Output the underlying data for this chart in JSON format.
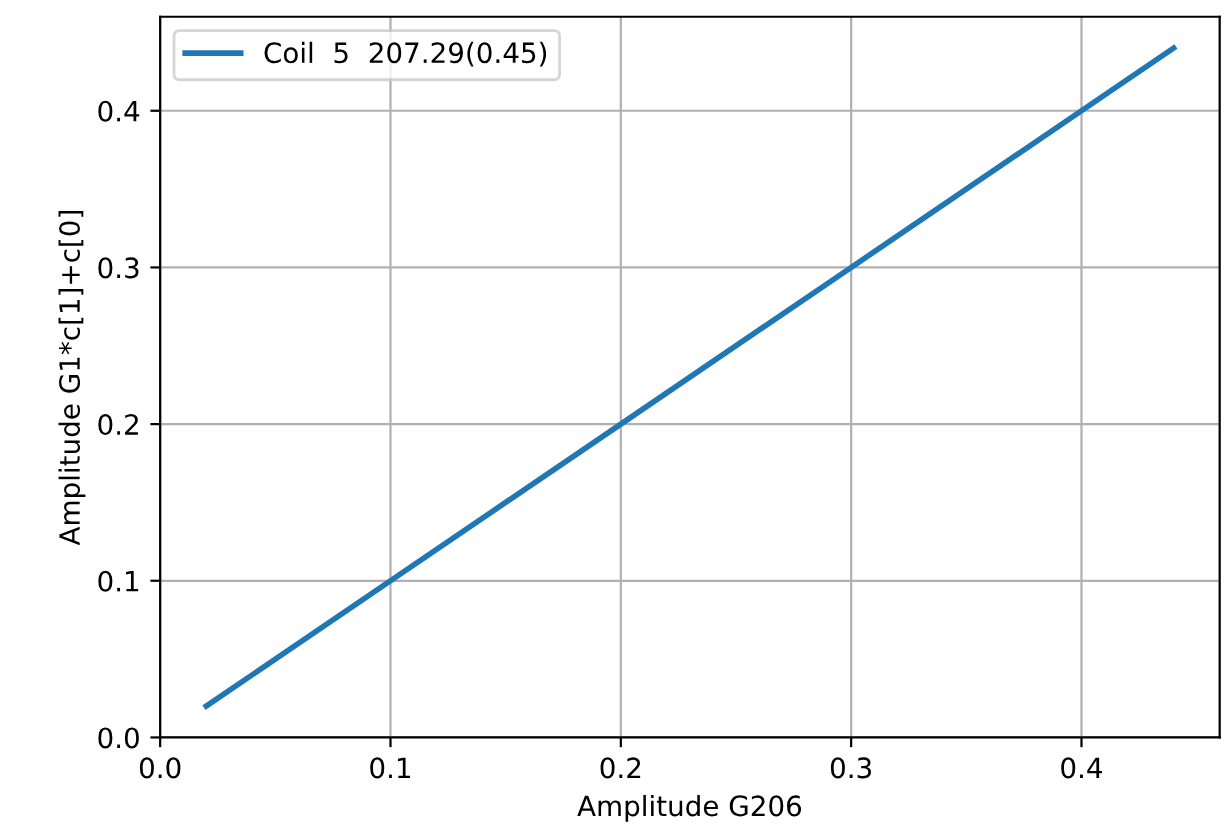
{
  "chart_data": {
    "type": "line",
    "xlabel": "Amplitude G206",
    "ylabel": "Amplitude G1*c[1]+c[0]",
    "series": [
      {
        "name": "Coil  5  207.29(0.45)",
        "color": "#1f77b4",
        "x": [
          0.02,
          0.1,
          0.2,
          0.3,
          0.4,
          0.44
        ],
        "values": [
          0.02,
          0.1,
          0.2,
          0.3,
          0.4,
          0.44
        ]
      }
    ],
    "xlim": [
      0,
      0.46
    ],
    "ylim": [
      0,
      0.46
    ],
    "xticks": [
      {
        "value": 0,
        "label": "0.0"
      },
      0.1,
      0.2,
      0.3,
      0.4
    ],
    "yticks": [
      {
        "value": 0,
        "label": "0.0"
      },
      0.1,
      0.2,
      0.3,
      0.4
    ],
    "grid": true,
    "legend": "top left"
  }
}
